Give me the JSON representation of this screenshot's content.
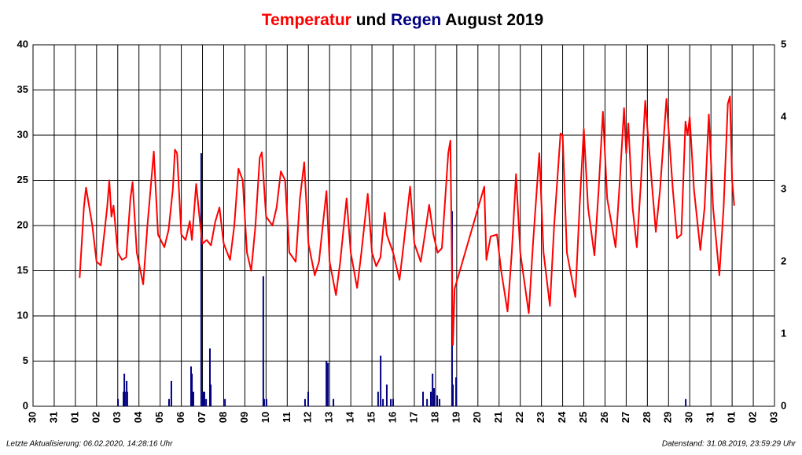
{
  "chart_data": {
    "type": "line-bar",
    "title_joiner": "und",
    "title_suffix": "August 2019",
    "footer_left": "Letzte Aktualisierung: 06.02.2020, 14:28:16 Uhr",
    "footer_right": "Datenstand: 31.08.2019, 23:59:29 Uhr",
    "xlim": [
      -1,
      34
    ],
    "xticks": [
      {
        "value": -1,
        "label": "30"
      },
      {
        "value": 0,
        "label": "31"
      },
      {
        "value": 1,
        "label": "01"
      },
      {
        "value": 2,
        "label": "02"
      },
      {
        "value": 3,
        "label": "03"
      },
      {
        "value": 4,
        "label": "04"
      },
      {
        "value": 5,
        "label": "05"
      },
      {
        "value": 6,
        "label": "06"
      },
      {
        "value": 7,
        "label": "07"
      },
      {
        "value": 8,
        "label": "08"
      },
      {
        "value": 9,
        "label": "09"
      },
      {
        "value": 10,
        "label": "10"
      },
      {
        "value": 11,
        "label": "11"
      },
      {
        "value": 12,
        "label": "12"
      },
      {
        "value": 13,
        "label": "13"
      },
      {
        "value": 14,
        "label": "14"
      },
      {
        "value": 15,
        "label": "15"
      },
      {
        "value": 16,
        "label": "16"
      },
      {
        "value": 17,
        "label": "17"
      },
      {
        "value": 18,
        "label": "18"
      },
      {
        "value": 19,
        "label": "19"
      },
      {
        "value": 20,
        "label": "20"
      },
      {
        "value": 21,
        "label": "21"
      },
      {
        "value": 22,
        "label": "22"
      },
      {
        "value": 23,
        "label": "23"
      },
      {
        "value": 24,
        "label": "24"
      },
      {
        "value": 25,
        "label": "25"
      },
      {
        "value": 26,
        "label": "26"
      },
      {
        "value": 27,
        "label": "27"
      },
      {
        "value": 28,
        "label": "28"
      },
      {
        "value": 29,
        "label": "29"
      },
      {
        "value": 30,
        "label": "30"
      },
      {
        "value": 31,
        "label": "31"
      },
      {
        "value": 32,
        "label": "01"
      },
      {
        "value": 33,
        "label": "02"
      },
      {
        "value": 34,
        "label": "03"
      }
    ],
    "ylim": [
      0,
      40
    ],
    "yticks": [
      0,
      5,
      10,
      15,
      20,
      25,
      30,
      35,
      40
    ],
    "y2lim": [
      0,
      5
    ],
    "y2ticks": [
      0,
      1,
      2,
      3,
      4,
      5
    ],
    "grid": true,
    "series": [
      {
        "name": "Temperatur",
        "color": "#ff0000",
        "kind": "line",
        "x": [
          1.2,
          1.4,
          1.5,
          1.8,
          2.0,
          2.2,
          2.5,
          2.6,
          2.7,
          2.8,
          3.0,
          3.2,
          3.4,
          3.6,
          3.7,
          3.9,
          4.2,
          4.4,
          4.7,
          4.9,
          5.2,
          5.4,
          5.6,
          5.7,
          5.8,
          6.0,
          6.2,
          6.4,
          6.5,
          6.7,
          6.9,
          7.0,
          7.2,
          7.4,
          7.6,
          7.8,
          8.0,
          8.3,
          8.5,
          8.7,
          8.9,
          9.1,
          9.3,
          9.5,
          9.7,
          9.8,
          10.0,
          10.3,
          10.5,
          10.7,
          10.9,
          11.1,
          11.4,
          11.6,
          11.8,
          12.0,
          12.3,
          12.5,
          12.7,
          12.85,
          13.0,
          13.3,
          13.5,
          13.8,
          14.0,
          14.3,
          14.5,
          14.8,
          15.0,
          15.2,
          15.4,
          15.6,
          15.7,
          16.0,
          16.3,
          16.5,
          16.8,
          17.0,
          17.3,
          17.5,
          17.7,
          17.9,
          18.1,
          18.3,
          18.6,
          18.7,
          18.8,
          18.82,
          18.9,
          20.3,
          20.4,
          20.6,
          20.9,
          21.1,
          21.4,
          21.6,
          21.8,
          22.0,
          22.4,
          22.6,
          22.9,
          23.1,
          23.4,
          23.6,
          23.9,
          24.0,
          24.2,
          24.6,
          24.8,
          25.0,
          25.2,
          25.5,
          25.7,
          25.9,
          26.1,
          26.5,
          26.7,
          26.9,
          27.0,
          27.1,
          27.3,
          27.5,
          27.7,
          27.9,
          28.2,
          28.4,
          28.6,
          28.9,
          29.2,
          29.4,
          29.6,
          29.8,
          29.9,
          30.0,
          30.2,
          30.5,
          30.7,
          30.9,
          31.1,
          31.4,
          31.6,
          31.8,
          31.9,
          32.0,
          32.1
        ],
        "values": [
          14.2,
          22,
          24.2,
          20,
          16,
          15.6,
          22,
          25,
          21,
          22.2,
          17,
          16.2,
          16.5,
          23,
          24.8,
          17,
          13.5,
          20,
          28.2,
          19,
          17.6,
          19.5,
          24,
          28.4,
          28,
          19,
          18.4,
          20.5,
          18.4,
          24.6,
          20,
          18,
          18.4,
          17.8,
          20.4,
          22,
          18,
          16.2,
          20,
          26.3,
          25,
          17,
          15,
          20,
          27.5,
          28.1,
          21,
          20,
          22,
          26,
          25,
          17,
          16,
          23,
          27,
          18,
          14.5,
          16,
          20.5,
          23.8,
          16,
          12.3,
          16,
          23,
          17,
          13.1,
          17,
          23.5,
          17,
          15.5,
          16.5,
          21.4,
          19,
          17,
          14,
          18,
          24.3,
          18,
          16,
          19,
          22.3,
          19,
          17,
          17.5,
          28,
          29.4,
          10.5,
          6.8,
          13,
          24.3,
          16.2,
          18.8,
          19,
          15,
          10.5,
          17,
          25.7,
          17,
          10.3,
          18,
          28,
          17,
          11.1,
          20,
          30.2,
          30,
          17,
          12.1,
          22,
          30.7,
          22,
          16.7,
          24,
          32.6,
          23,
          17.6,
          25,
          33,
          28,
          31.3,
          22,
          17.6,
          25,
          33.8,
          25,
          19.3,
          24,
          34,
          24,
          18.6,
          19,
          31.5,
          30,
          32,
          24,
          17.3,
          22,
          32.3,
          22,
          14.5,
          22,
          33.5,
          34.3,
          25,
          22.2
        ]
      },
      {
        "name": "Regen",
        "color": "#000080",
        "kind": "bar",
        "axis": "y2",
        "x": [
          3.01,
          3.27,
          3.31,
          3.34,
          3.42,
          3.45,
          5.42,
          5.53,
          6.46,
          6.5,
          6.57,
          6.94,
          7.02,
          7.09,
          7.17,
          7.35,
          7.39,
          8.06,
          9.87,
          9.91,
          10.02,
          11.84,
          11.99,
          12.85,
          12.92,
          13.18,
          15.29,
          15.41,
          15.52,
          15.7,
          15.89,
          16.0,
          17.41,
          17.6,
          17.78,
          17.86,
          17.93,
          18.08,
          18.19,
          18.78,
          18.82,
          18.97,
          29.81
        ],
        "values": [
          0.1,
          0.2,
          0.45,
          0.2,
          0.35,
          0.2,
          0.1,
          0.35,
          0.55,
          0.45,
          0.2,
          3.5,
          0.2,
          0.2,
          0.1,
          0.8,
          0.3,
          0.1,
          1.8,
          0.1,
          0.1,
          0.1,
          0.2,
          0.62,
          0.6,
          0.1,
          0.2,
          0.7,
          0.1,
          0.3,
          0.1,
          0.1,
          0.2,
          0.1,
          0.2,
          0.45,
          0.25,
          0.15,
          0.1,
          2.7,
          0.3,
          0.4,
          0.1
        ]
      }
    ]
  }
}
